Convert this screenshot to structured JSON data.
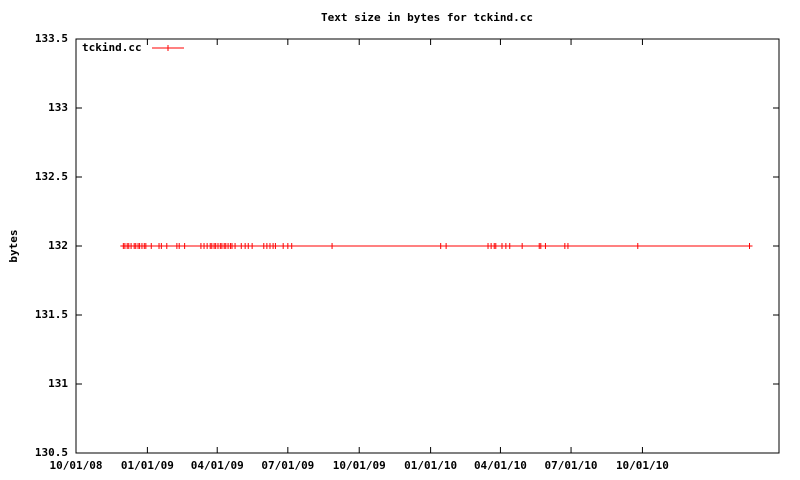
{
  "chart_data": {
    "type": "line",
    "title": "Text size in bytes for tckind.cc",
    "ylabel": "bytes",
    "x": [
      "2008-12-01",
      "2008-12-03",
      "2008-12-06",
      "2008-12-08",
      "2008-12-11",
      "2008-12-15",
      "2008-12-17",
      "2008-12-20",
      "2008-12-22",
      "2008-12-25",
      "2008-12-28",
      "2008-12-30",
      "2009-01-06",
      "2009-01-16",
      "2009-01-19",
      "2009-01-26",
      "2009-02-08",
      "2009-02-11",
      "2009-02-18",
      "2009-03-11",
      "2009-03-15",
      "2009-03-19",
      "2009-03-23",
      "2009-03-25",
      "2009-03-28",
      "2009-03-30",
      "2009-04-02",
      "2009-04-05",
      "2009-04-07",
      "2009-04-10",
      "2009-04-12",
      "2009-04-15",
      "2009-04-18",
      "2009-04-20",
      "2009-04-24",
      "2009-05-02",
      "2009-05-07",
      "2009-05-11",
      "2009-05-16",
      "2009-05-31",
      "2009-06-04",
      "2009-06-08",
      "2009-06-12",
      "2009-06-15",
      "2009-06-25",
      "2009-07-01",
      "2009-07-06",
      "2009-08-27",
      "2010-01-14",
      "2010-01-21",
      "2010-03-16",
      "2010-03-20",
      "2010-03-24",
      "2010-03-26",
      "2010-04-03",
      "2010-04-08",
      "2010-04-13",
      "2010-04-29",
      "2010-05-21",
      "2010-05-23",
      "2010-05-29",
      "2010-06-23",
      "2010-06-27",
      "2010-09-25",
      "2011-02-16"
    ],
    "series": [
      {
        "name": "tckind.cc",
        "color": "#ff0000",
        "values": [
          132,
          132,
          132,
          132,
          132,
          132,
          132,
          132,
          132,
          132,
          132,
          132,
          132,
          132,
          132,
          132,
          132,
          132,
          132,
          132,
          132,
          132,
          132,
          132,
          132,
          132,
          132,
          132,
          132,
          132,
          132,
          132,
          132,
          132,
          132,
          132,
          132,
          132,
          132,
          132,
          132,
          132,
          132,
          132,
          132,
          132,
          132,
          132,
          132,
          132,
          132,
          132,
          132,
          132,
          132,
          132,
          132,
          132,
          132,
          132,
          132,
          132,
          132,
          132,
          132
        ]
      }
    ],
    "xlim": [
      "2008-10-01",
      "2011-03-26"
    ],
    "xticks": [
      {
        "value": "2008-10-01",
        "label": "10/01/08"
      },
      {
        "value": "2009-01-01",
        "label": "01/01/09"
      },
      {
        "value": "2009-04-01",
        "label": "04/01/09"
      },
      {
        "value": "2009-07-01",
        "label": "07/01/09"
      },
      {
        "value": "2009-10-01",
        "label": "10/01/09"
      },
      {
        "value": "2010-01-01",
        "label": "01/01/10"
      },
      {
        "value": "2010-04-01",
        "label": "04/01/10"
      },
      {
        "value": "2010-07-01",
        "label": "07/01/10"
      },
      {
        "value": "2010-10-01",
        "label": "10/01/10"
      }
    ],
    "ylim": [
      130.5,
      133.5
    ],
    "yticks": [
      130.5,
      131,
      131.5,
      132,
      132.5,
      133,
      133.5
    ],
    "legend": "top-left",
    "grid": false
  }
}
